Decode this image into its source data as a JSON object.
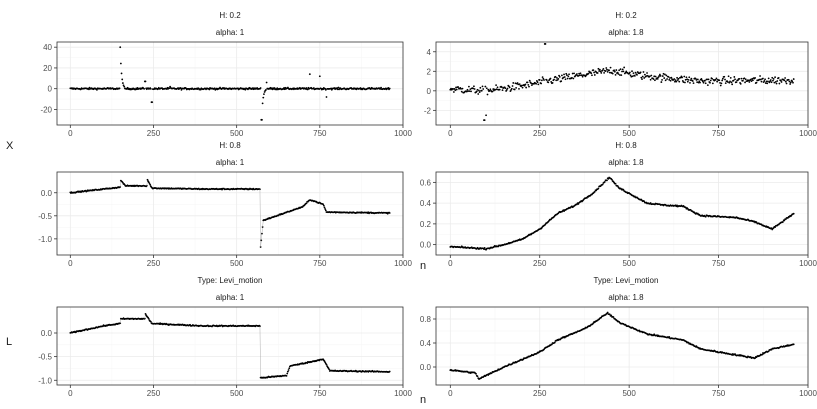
{
  "labels": {
    "y_top": "X",
    "y_bottom": "L",
    "x_label": "n"
  },
  "colors": {
    "points": "#000000",
    "panel_border": "#333333",
    "grid_major": "#ebebeb",
    "grid_minor": "#f5f5f5"
  },
  "chart_data": [
    {
      "type": "scatter",
      "strip1": "H: 0.2",
      "strip2": "alpha: 1",
      "xlim": [
        -40,
        1000
      ],
      "xticks": [
        0,
        250,
        500,
        750,
        1000
      ],
      "ylim": [
        -35,
        45
      ],
      "yticks": [
        -20,
        0,
        20,
        40
      ],
      "profile": {
        "kind": "spiky",
        "base": 0,
        "noise": 1.5,
        "spikes": [
          [
            150,
            40
          ],
          [
            225,
            7
          ],
          [
            245,
            -13
          ],
          [
            575,
            -30
          ],
          [
            590,
            6
          ],
          [
            750,
            12
          ],
          [
            770,
            -8
          ],
          [
            720,
            14
          ],
          [
            300,
            2
          ]
        ]
      }
    },
    {
      "type": "scatter",
      "strip1": "H: 0.2",
      "strip2": "alpha: 1.8",
      "xlim": [
        -40,
        1000
      ],
      "xticks": [
        0,
        250,
        500,
        750,
        1000
      ],
      "ylim": [
        -3.5,
        5
      ],
      "yticks": [
        -2,
        0,
        2,
        4
      ],
      "profile": {
        "kind": "noisy",
        "noise": 0.7,
        "trend": [
          [
            0,
            0.2
          ],
          [
            100,
            0.0
          ],
          [
            200,
            0.5
          ],
          [
            300,
            1.2
          ],
          [
            400,
            1.8
          ],
          [
            450,
            2.1
          ],
          [
            550,
            1.5
          ],
          [
            700,
            1.0
          ],
          [
            960,
            1.1
          ]
        ],
        "spikes": [
          [
            95,
            -3.0
          ],
          [
            100,
            -2.5
          ],
          [
            265,
            4.8
          ]
        ]
      }
    },
    {
      "type": "scatter",
      "strip1": "H: 0.8",
      "strip2": "alpha: 1",
      "xlim": [
        -40,
        1000
      ],
      "xticks": [
        0,
        250,
        500,
        750,
        1000
      ],
      "ylim": [
        -1.35,
        0.45
      ],
      "yticks": [
        -1.0,
        -0.5,
        0.0
      ],
      "profile": {
        "kind": "steps",
        "noise": 0.02,
        "trend": [
          [
            0,
            0.0
          ],
          [
            150,
            0.12
          ],
          [
            151,
            0.28
          ],
          [
            165,
            0.15
          ],
          [
            230,
            0.15
          ],
          [
            231,
            0.3
          ],
          [
            245,
            0.1
          ],
          [
            400,
            0.08
          ],
          [
            570,
            0.08
          ],
          [
            571,
            -1.25
          ],
          [
            580,
            -0.6
          ],
          [
            640,
            -0.45
          ],
          [
            700,
            -0.3
          ],
          [
            720,
            -0.15
          ],
          [
            760,
            -0.25
          ],
          [
            770,
            -0.42
          ],
          [
            960,
            -0.44
          ]
        ]
      }
    },
    {
      "type": "scatter",
      "strip1": "H: 0.8",
      "strip2": "alpha: 1.8",
      "xlim": [
        -40,
        1000
      ],
      "xticks": [
        0,
        250,
        500,
        750,
        1000
      ],
      "ylim": [
        -0.1,
        0.7
      ],
      "yticks": [
        0.0,
        0.2,
        0.4,
        0.6
      ],
      "profile": {
        "kind": "walk",
        "noise": 0.012,
        "trend": [
          [
            0,
            -0.02
          ],
          [
            100,
            -0.04
          ],
          [
            150,
            0.0
          ],
          [
            200,
            0.05
          ],
          [
            250,
            0.15
          ],
          [
            300,
            0.3
          ],
          [
            350,
            0.38
          ],
          [
            400,
            0.5
          ],
          [
            445,
            0.65
          ],
          [
            470,
            0.55
          ],
          [
            550,
            0.4
          ],
          [
            600,
            0.38
          ],
          [
            650,
            0.37
          ],
          [
            700,
            0.28
          ],
          [
            800,
            0.26
          ],
          [
            850,
            0.22
          ],
          [
            900,
            0.15
          ],
          [
            960,
            0.3
          ]
        ]
      }
    },
    {
      "type": "scatter",
      "strip1": "Type: Levi_motion",
      "strip2": "alpha: 1",
      "xlim": [
        -40,
        1000
      ],
      "xticks": [
        0,
        250,
        500,
        750,
        1000
      ],
      "ylim": [
        -1.1,
        0.55
      ],
      "yticks": [
        -1.0,
        -0.5,
        0.0
      ],
      "profile": {
        "kind": "steps",
        "noise": 0.02,
        "trend": [
          [
            0,
            0.0
          ],
          [
            100,
            0.15
          ],
          [
            150,
            0.2
          ],
          [
            151,
            0.3
          ],
          [
            225,
            0.3
          ],
          [
            226,
            0.4
          ],
          [
            245,
            0.2
          ],
          [
            400,
            0.15
          ],
          [
            570,
            0.15
          ],
          [
            571,
            -0.95
          ],
          [
            650,
            -0.9
          ],
          [
            660,
            -0.7
          ],
          [
            730,
            -0.6
          ],
          [
            760,
            -0.55
          ],
          [
            780,
            -0.8
          ],
          [
            960,
            -0.82
          ]
        ]
      }
    },
    {
      "type": "scatter",
      "strip1": "Type: Levi_motion",
      "strip2": "alpha: 1.8",
      "xlim": [
        -40,
        1000
      ],
      "xticks": [
        0,
        250,
        500,
        750,
        1000
      ],
      "ylim": [
        -0.3,
        1.0
      ],
      "yticks": [
        0.0,
        0.4,
        0.8
      ],
      "profile": {
        "kind": "walk",
        "noise": 0.02,
        "trend": [
          [
            0,
            -0.05
          ],
          [
            70,
            -0.1
          ],
          [
            80,
            -0.2
          ],
          [
            150,
            0.0
          ],
          [
            250,
            0.25
          ],
          [
            300,
            0.45
          ],
          [
            380,
            0.65
          ],
          [
            440,
            0.9
          ],
          [
            470,
            0.75
          ],
          [
            550,
            0.55
          ],
          [
            650,
            0.45
          ],
          [
            700,
            0.3
          ],
          [
            800,
            0.2
          ],
          [
            850,
            0.15
          ],
          [
            900,
            0.3
          ],
          [
            960,
            0.38
          ]
        ]
      }
    }
  ]
}
